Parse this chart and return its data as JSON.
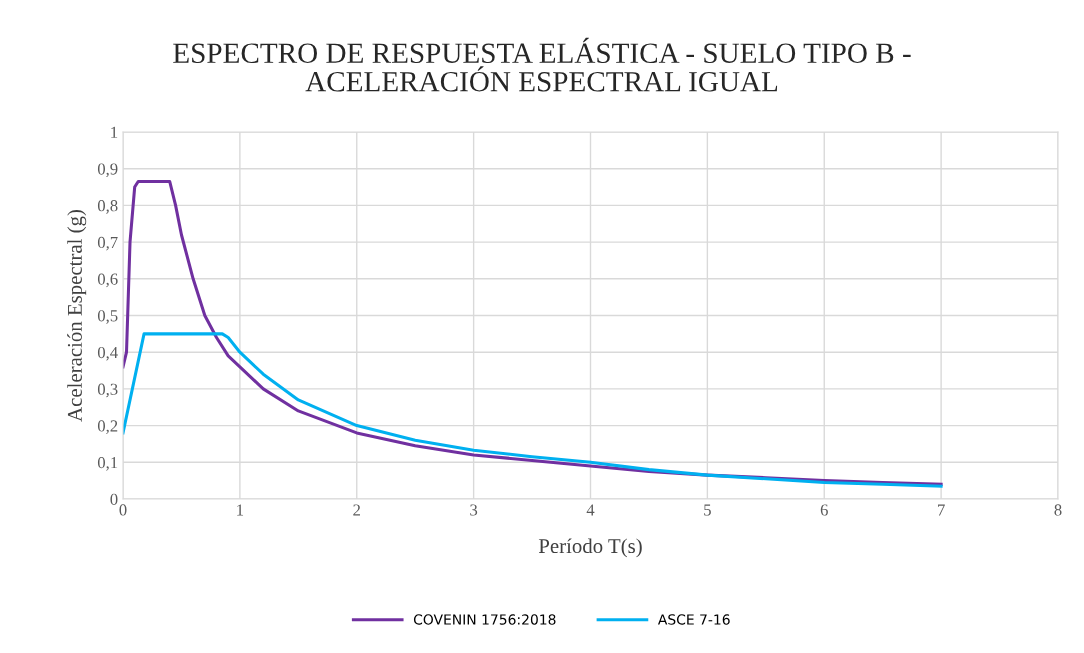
{
  "chart_data": {
    "type": "line",
    "title": "ESPECTRO DE RESPUESTA ELÁSTICA - SUELO TIPO B -\nACELERACIÓN ESPECTRAL IGUAL",
    "xlabel": "Período T(s)",
    "ylabel": "Aceleración Espectral (g)",
    "xlim": [
      0,
      8
    ],
    "xticks": [
      0,
      1,
      2,
      3,
      4,
      5,
      6,
      7,
      8
    ],
    "ylim": [
      0,
      1
    ],
    "yticks": [
      0,
      {
        "value": 0.1,
        "label": "0,1"
      },
      {
        "value": 0.2,
        "label": "0,2"
      },
      {
        "value": 0.3,
        "label": "0,3"
      },
      {
        "value": 0.4,
        "label": "0,4"
      },
      {
        "value": 0.5,
        "label": "0,5"
      },
      {
        "value": 0.6,
        "label": "0,6"
      },
      {
        "value": 0.7,
        "label": "0,7"
      },
      {
        "value": 0.8,
        "label": "0,8"
      },
      {
        "value": 0.9,
        "label": "0,9"
      },
      1
    ],
    "grid": true,
    "legend": "bottom",
    "marker": "none",
    "line_style": "solid",
    "series": [
      {
        "name": "COVENIN 1756:2018",
        "color": "#7030a0",
        "x": [
          0,
          0.03,
          0.06,
          0.1,
          0.13,
          0.4,
          0.45,
          0.5,
          0.6,
          0.7,
          0.8,
          0.9,
          1.0,
          1.2,
          1.5,
          2,
          2.5,
          3,
          3.5,
          4,
          4.5,
          5,
          5.5,
          6,
          6.5,
          7
        ],
        "values": [
          0.36,
          0.4,
          0.7,
          0.85,
          0.865,
          0.865,
          0.8,
          0.72,
          0.6,
          0.5,
          0.44,
          0.39,
          0.36,
          0.3,
          0.24,
          0.18,
          0.145,
          0.12,
          0.105,
          0.09,
          0.075,
          0.065,
          0.058,
          0.05,
          0.045,
          0.04
        ]
      },
      {
        "name": "ASCE 7-16",
        "color": "#00b0f0",
        "x": [
          0,
          0.18,
          0.85,
          0.9,
          1.0,
          1.2,
          1.5,
          2,
          2.5,
          3,
          3.5,
          4,
          4.5,
          5,
          5.5,
          6,
          6.5,
          7
        ],
        "values": [
          0.18,
          0.45,
          0.45,
          0.44,
          0.4,
          0.34,
          0.27,
          0.2,
          0.16,
          0.133,
          0.115,
          0.1,
          0.08,
          0.065,
          0.055,
          0.045,
          0.04,
          0.035
        ]
      }
    ]
  }
}
